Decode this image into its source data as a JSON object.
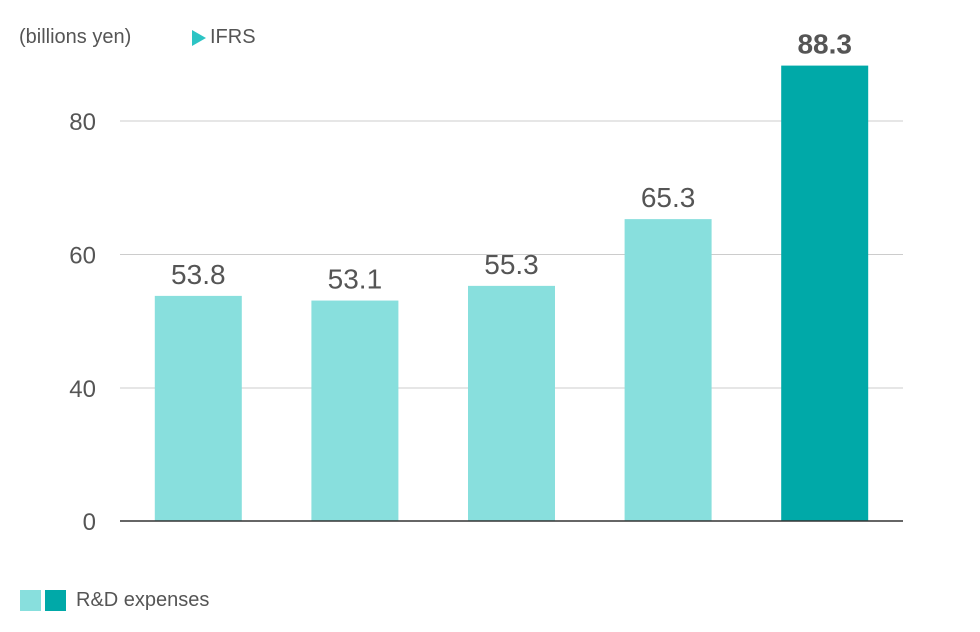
{
  "chart_data": {
    "type": "bar",
    "unit_label": "(billions yen)",
    "ifrs_label": "IFRS",
    "categories": [
      "",
      "",
      "",
      "",
      ""
    ],
    "values": [
      53.8,
      53.1,
      55.3,
      65.3,
      88.3
    ],
    "value_labels": [
      "53.8",
      "53.1",
      "55.3",
      "65.3",
      "88.3"
    ],
    "highlight_index": 4,
    "yticks": [
      0,
      40,
      60,
      80
    ],
    "ytick_labels": [
      "0",
      "40",
      "60",
      "80"
    ],
    "ylim": [
      20,
      100
    ],
    "grid": true,
    "legend": {
      "label": "R&D expenses",
      "placement": "bottom-left"
    },
    "colors": {
      "bar": "#88dfdd",
      "highlight": "#00a9a8",
      "ifrs_marker": "#2cc4c4",
      "grid": "#cccccc",
      "axis": "#333333",
      "text": "#555555"
    }
  }
}
